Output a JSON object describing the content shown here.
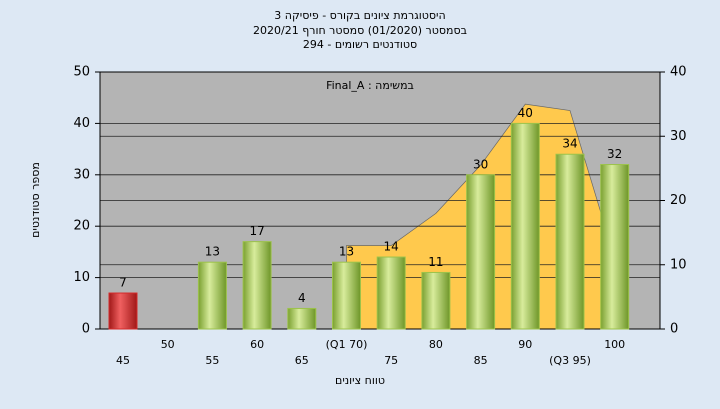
{
  "chart_data": {
    "type": "bar",
    "title": "היסטוגרמת ציונים בקורס - פיסיקה 3",
    "subtitle": [
      "בסמסטר (01/2020) סמסטר חורף 2020/21",
      "סטודנטים רשומים - 294"
    ],
    "annotation": "במשימה : Final_A",
    "x_label": "טווח ציונים",
    "y_label": "מספר סטודנטים",
    "categories": [
      "45",
      "50",
      "55",
      "60",
      "65",
      "(Q1 70)",
      "75",
      "80",
      "85",
      "90",
      "(Q3 95)",
      "100"
    ],
    "values": [
      7,
      null,
      13,
      17,
      4,
      13,
      14,
      11,
      30,
      40,
      34,
      32
    ],
    "colors": [
      "#d42a2a",
      null,
      "#9cc24a",
      "#9cc24a",
      "#9cc24a",
      "#9cc24a",
      "#9cc24a",
      "#9cc24a",
      "#9cc24a",
      "#9cc24a",
      "#9cc24a",
      "#9cc24a"
    ],
    "area": {
      "color": "#ffc94d",
      "axis": "y2",
      "values": [
        null,
        null,
        null,
        null,
        null,
        13,
        13,
        18,
        25.5,
        35,
        34,
        11
      ]
    },
    "ylim": [
      0,
      50
    ],
    "yticks": [
      0,
      10,
      20,
      30,
      40,
      50
    ],
    "y2lim": [
      0,
      40
    ],
    "y2ticks": [
      0,
      10,
      20,
      30,
      40
    ],
    "grid": true
  }
}
